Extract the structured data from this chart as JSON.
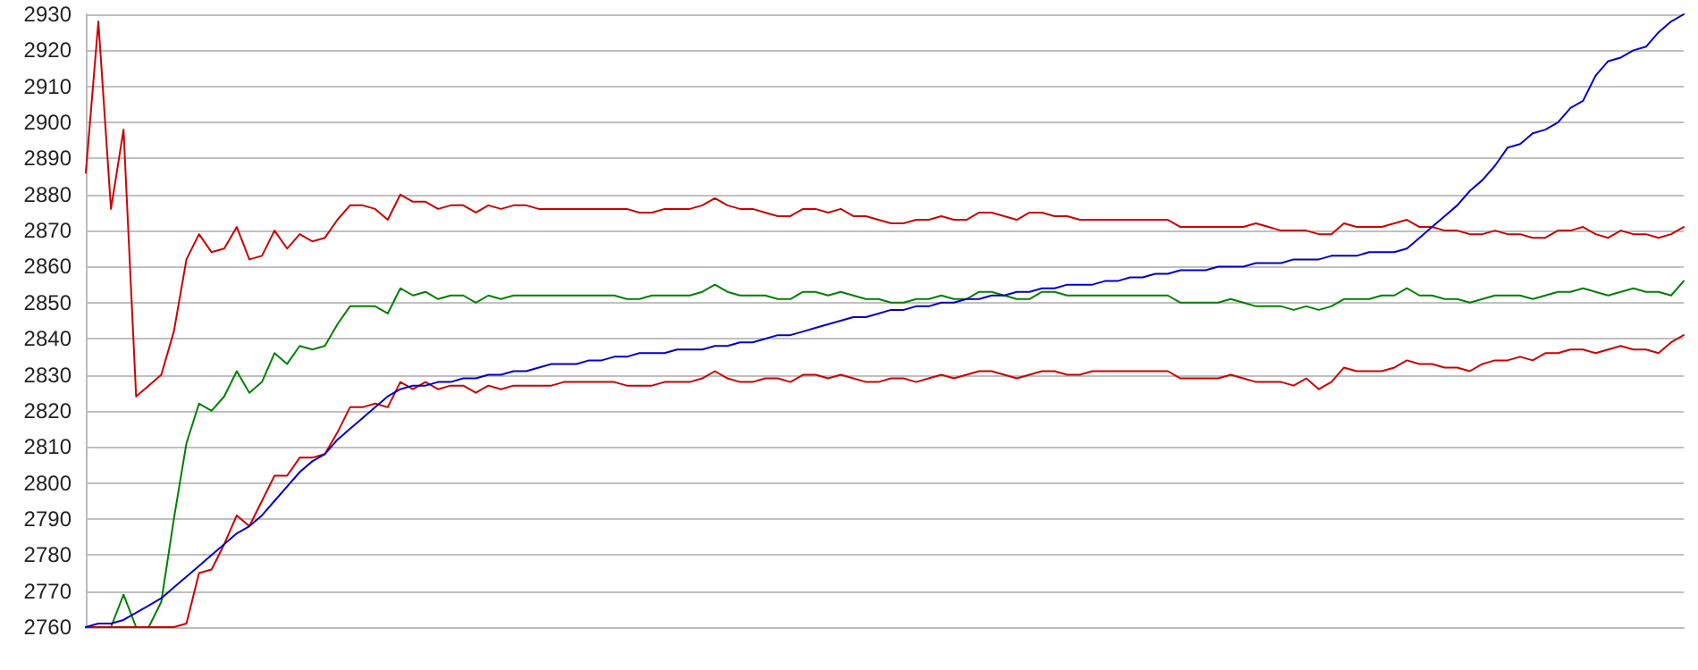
{
  "chart_data": {
    "type": "line",
    "categories": [
      null,
      null,
      null,
      null,
      null,
      null,
      null,
      null,
      null,
      null,
      null,
      null,
      null,
      null,
      null,
      null,
      null,
      null,
      null,
      null,
      null,
      null,
      null,
      null,
      null,
      null,
      null,
      null,
      null,
      null,
      null,
      null,
      null,
      null,
      null,
      null,
      null,
      null,
      null,
      null,
      null,
      null,
      null,
      null,
      null,
      null,
      null,
      null,
      null,
      null,
      null,
      null,
      null,
      null,
      null,
      null,
      null,
      null,
      null,
      null,
      null,
      null,
      null,
      null,
      null,
      null,
      null,
      null,
      null,
      null,
      null,
      null,
      null,
      null,
      null,
      null,
      null,
      null,
      null,
      null,
      null,
      null,
      null,
      null,
      null,
      null,
      null,
      null,
      null,
      null,
      null,
      null,
      null,
      null,
      null,
      null,
      null,
      null,
      null,
      null,
      null,
      null,
      null,
      null,
      null,
      null,
      null,
      null,
      null,
      null,
      null,
      null,
      null,
      null,
      null,
      null,
      null,
      null,
      null,
      null,
      null,
      null,
      null,
      null,
      null,
      null,
      null,
      null
    ],
    "series": [
      {
        "color": "#cc0000",
        "values": [
          2886,
          2928,
          2876,
          2898,
          2824,
          2827,
          2830,
          2842,
          2862,
          2869,
          2864,
          2865,
          2871,
          2862,
          2863,
          2870,
          2865,
          2869,
          2867,
          2868,
          2873,
          2877,
          2877,
          2876,
          2873,
          2880,
          2878,
          2878,
          2876,
          2877,
          2877,
          2875,
          2877,
          2876,
          2877,
          2877,
          2876,
          2876,
          2876,
          2876,
          2876,
          2876,
          2876,
          2876,
          2875,
          2875,
          2876,
          2876,
          2876,
          2877,
          2879,
          2877,
          2876,
          2876,
          2875,
          2874,
          2874,
          2876,
          2876,
          2875,
          2876,
          2874,
          2874,
          2873,
          2872,
          2872,
          2873,
          2873,
          2874,
          2873,
          2873,
          2875,
          2875,
          2874,
          2873,
          2875,
          2875,
          2874,
          2874,
          2873,
          2873,
          2873,
          2873,
          2873,
          2873,
          2873,
          2873,
          2871,
          2871,
          2871,
          2871,
          2871,
          2871,
          2872,
          2871,
          2870,
          2870,
          2870,
          2869,
          2869,
          2872,
          2871,
          2871,
          2871,
          2872,
          2873,
          2871,
          2871,
          2870,
          2870,
          2869,
          2869,
          2870,
          2869,
          2869,
          2868,
          2868,
          2870,
          2870,
          2871,
          2869,
          2868,
          2870,
          2869,
          2869,
          2868,
          2869,
          2871
        ]
      },
      {
        "color": "#008000",
        "values": [
          2760,
          2760,
          2760,
          2769,
          2760,
          2760,
          2767,
          2790,
          2811,
          2822,
          2820,
          2824,
          2831,
          2825,
          2828,
          2836,
          2833,
          2838,
          2837,
          2838,
          2844,
          2849,
          2849,
          2849,
          2847,
          2854,
          2852,
          2853,
          2851,
          2852,
          2852,
          2850,
          2852,
          2851,
          2852,
          2852,
          2852,
          2852,
          2852,
          2852,
          2852,
          2852,
          2852,
          2851,
          2851,
          2852,
          2852,
          2852,
          2852,
          2853,
          2855,
          2853,
          2852,
          2852,
          2852,
          2851,
          2851,
          2853,
          2853,
          2852,
          2853,
          2852,
          2851,
          2851,
          2850,
          2850,
          2851,
          2851,
          2852,
          2851,
          2851,
          2853,
          2853,
          2852,
          2851,
          2851,
          2853,
          2853,
          2852,
          2852,
          2852,
          2852,
          2852,
          2852,
          2852,
          2852,
          2852,
          2850,
          2850,
          2850,
          2850,
          2851,
          2850,
          2849,
          2849,
          2849,
          2848,
          2849,
          2848,
          2849,
          2851,
          2851,
          2851,
          2852,
          2852,
          2854,
          2852,
          2852,
          2851,
          2851,
          2850,
          2851,
          2852,
          2852,
          2852,
          2851,
          2852,
          2853,
          2853,
          2854,
          2853,
          2852,
          2853,
          2854,
          2853,
          2853,
          2852,
          2856
        ]
      },
      {
        "color": "#cc0000",
        "values": [
          2760,
          2760,
          2760,
          2760,
          2760,
          2760,
          2760,
          2760,
          2761,
          2775,
          2776,
          2783,
          2791,
          2788,
          2795,
          2802,
          2802,
          2807,
          2807,
          2808,
          2814,
          2821,
          2821,
          2822,
          2821,
          2828,
          2826,
          2828,
          2826,
          2827,
          2827,
          2825,
          2827,
          2826,
          2827,
          2827,
          2827,
          2827,
          2828,
          2828,
          2828,
          2828,
          2828,
          2827,
          2827,
          2827,
          2828,
          2828,
          2828,
          2829,
          2831,
          2829,
          2828,
          2828,
          2829,
          2829,
          2828,
          2830,
          2830,
          2829,
          2830,
          2829,
          2828,
          2828,
          2829,
          2829,
          2828,
          2829,
          2830,
          2829,
          2830,
          2831,
          2831,
          2830,
          2829,
          2830,
          2831,
          2831,
          2830,
          2830,
          2831,
          2831,
          2831,
          2831,
          2831,
          2831,
          2831,
          2829,
          2829,
          2829,
          2829,
          2830,
          2829,
          2828,
          2828,
          2828,
          2827,
          2829,
          2826,
          2828,
          2832,
          2831,
          2831,
          2831,
          2832,
          2834,
          2833,
          2833,
          2832,
          2832,
          2831,
          2833,
          2834,
          2834,
          2835,
          2834,
          2836,
          2836,
          2837,
          2837,
          2836,
          2837,
          2838,
          2837,
          2837,
          2836,
          2839,
          2841
        ]
      },
      {
        "color": "#0000cc",
        "values": [
          2760,
          2761,
          2761,
          2762,
          2764,
          2766,
          2768,
          2771,
          2774,
          2777,
          2780,
          2783,
          2786,
          2788,
          2791,
          2795,
          2799,
          2803,
          2806,
          2808,
          2812,
          2815,
          2818,
          2821,
          2824,
          2826,
          2827,
          2827,
          2828,
          2828,
          2829,
          2829,
          2830,
          2830,
          2831,
          2831,
          2832,
          2833,
          2833,
          2833,
          2834,
          2834,
          2835,
          2835,
          2836,
          2836,
          2836,
          2837,
          2837,
          2837,
          2838,
          2838,
          2839,
          2839,
          2840,
          2841,
          2841,
          2842,
          2843,
          2844,
          2845,
          2846,
          2846,
          2847,
          2848,
          2848,
          2849,
          2849,
          2850,
          2850,
          2851,
          2851,
          2852,
          2852,
          2853,
          2853,
          2854,
          2854,
          2855,
          2855,
          2855,
          2856,
          2856,
          2857,
          2857,
          2858,
          2858,
          2859,
          2859,
          2859,
          2860,
          2860,
          2860,
          2861,
          2861,
          2861,
          2862,
          2862,
          2862,
          2863,
          2863,
          2863,
          2864,
          2864,
          2864,
          2865,
          2868,
          2871,
          2874,
          2877,
          2881,
          2884,
          2888,
          2893,
          2894,
          2897,
          2898,
          2900,
          2904,
          2906,
          2913,
          2917,
          2918,
          2920,
          2921,
          2925,
          2928,
          2930
        ]
      }
    ],
    "ylim": [
      2760,
      2930
    ],
    "yticks": [
      2760,
      2770,
      2780,
      2790,
      2800,
      2810,
      2820,
      2830,
      2840,
      2850,
      2860,
      2870,
      2880,
      2890,
      2900,
      2910,
      2920,
      2930
    ],
    "grid": "y",
    "tick_labels": "y",
    "line_style": "solid"
  }
}
